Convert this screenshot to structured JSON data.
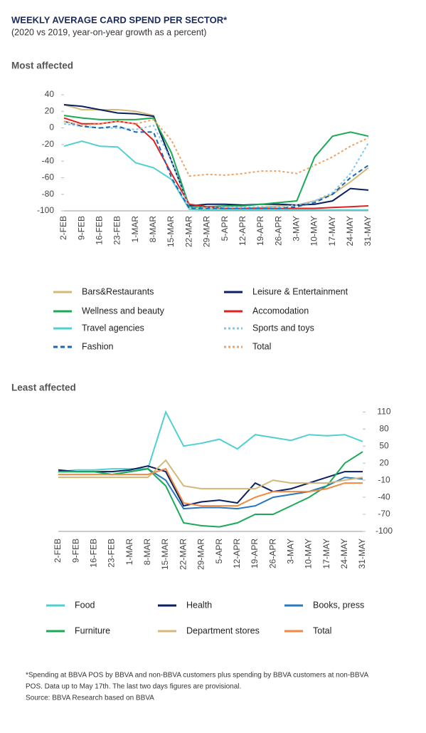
{
  "header": {
    "title": "WEEKLY AVERAGE CARD SPEND PER SECTOR*",
    "subtitle": "(2020 vs 2019, year-on-year growth as a percent)"
  },
  "chart_data": [
    {
      "type": "line",
      "title": "Most affected",
      "categories": [
        "2-FEB",
        "9-FEB",
        "16-FEB",
        "23-FEB",
        "1-MAR",
        "8-MAR",
        "15-MAR",
        "22-MAR",
        "29-MAR",
        "5-APR",
        "12-APR",
        "19-APR",
        "26-APR",
        "3-MAY",
        "10-MAY",
        "17-MAY",
        "24-MAY",
        "31-MAY"
      ],
      "ylim": [
        -100,
        40
      ],
      "yticks": [
        40,
        20,
        0,
        -20,
        -40,
        -60,
        -80,
        -100
      ],
      "y_axis_side": "left",
      "grid": false,
      "series": [
        {
          "name": "Bars&Restaurants",
          "color": "#d4b87a",
          "dash": "solid",
          "values": [
            28,
            22,
            22,
            22,
            20,
            15,
            -40,
            -96,
            -97,
            -97,
            -97,
            -96,
            -94,
            -93,
            -88,
            -80,
            -65,
            -48
          ]
        },
        {
          "name": "Leisure & Entertainment",
          "color": "#0a2060",
          "dash": "solid",
          "values": [
            28,
            26,
            22,
            18,
            17,
            14,
            -40,
            -94,
            -92,
            -92,
            -93,
            -92,
            -92,
            -93,
            -92,
            -88,
            -73,
            -75
          ]
        },
        {
          "name": "Wellness and beauty",
          "color": "#1aaa55",
          "dash": "solid",
          "values": [
            15,
            12,
            10,
            10,
            10,
            12,
            -30,
            -95,
            -95,
            -94,
            -94,
            -92,
            -90,
            -88,
            -35,
            -10,
            -5,
            -10
          ]
        },
        {
          "name": "Accomodation",
          "color": "#e0201e",
          "dash": "solid",
          "values": [
            12,
            5,
            5,
            8,
            5,
            -15,
            -55,
            -92,
            -95,
            -97,
            -97,
            -97,
            -97,
            -97,
            -97,
            -96,
            -95,
            -94
          ]
        },
        {
          "name": "Travel agencies",
          "color": "#4fd0d0",
          "dash": "solid",
          "values": [
            -22,
            -16,
            -22,
            -23,
            -42,
            -48,
            -62,
            -98,
            -99,
            -99,
            -99,
            -99,
            -99,
            -99,
            -99,
            -99,
            -99,
            -99
          ]
        },
        {
          "name": "Sports and toys",
          "color": "#7ec8f0",
          "dash": "dotted",
          "values": [
            5,
            2,
            0,
            0,
            -2,
            3,
            -40,
            -96,
            -96,
            -96,
            -96,
            -95,
            -95,
            -93,
            -88,
            -78,
            -55,
            -18
          ]
        },
        {
          "name": "Fashion",
          "color": "#1a64b4",
          "dash": "dashed",
          "values": [
            8,
            2,
            0,
            2,
            -5,
            -5,
            -60,
            -97,
            -97,
            -97,
            -97,
            -97,
            -97,
            -95,
            -90,
            -80,
            -60,
            -45
          ]
        },
        {
          "name": "Total",
          "color": "#f0a060",
          "dash": "dotted",
          "values": [
            8,
            3,
            5,
            8,
            5,
            10,
            -15,
            -58,
            -56,
            -57,
            -55,
            -52,
            -52,
            -55,
            -45,
            -35,
            -22,
            -12
          ]
        }
      ]
    },
    {
      "type": "line",
      "title": "Least affected",
      "categories": [
        "2-FEB",
        "9-FEB",
        "16-FEB",
        "23-FEB",
        "1-MAR",
        "8-MAR",
        "15-MAR",
        "22-MAR",
        "29-MAR",
        "5-APR",
        "12-APR",
        "19-APR",
        "26-APR",
        "3-MAY",
        "10-MAY",
        "17-MAY",
        "24-MAY",
        "31-MAY"
      ],
      "ylim": [
        -100,
        120
      ],
      "yticks": [
        110,
        80,
        50,
        20,
        -10,
        -40,
        -70,
        -100
      ],
      "y_axis_side": "right",
      "grid": false,
      "series": [
        {
          "name": "Food",
          "color": "#4fd0d0",
          "dash": "solid",
          "values": [
            5,
            8,
            8,
            10,
            10,
            10,
            110,
            50,
            55,
            62,
            45,
            70,
            65,
            60,
            70,
            68,
            70,
            58
          ]
        },
        {
          "name": "Health",
          "color": "#0a2060",
          "dash": "solid",
          "values": [
            8,
            5,
            5,
            5,
            8,
            15,
            5,
            -55,
            -48,
            -45,
            -50,
            -15,
            -30,
            -25,
            -15,
            -5,
            5,
            5
          ]
        },
        {
          "name": "Books, press",
          "color": "#2a78c0",
          "dash": "solid",
          "values": [
            5,
            5,
            5,
            0,
            5,
            10,
            -10,
            -60,
            -58,
            -58,
            -60,
            -55,
            -40,
            -35,
            -30,
            -20,
            -5,
            -8
          ]
        },
        {
          "name": "Furniture",
          "color": "#1aaa55",
          "dash": "solid",
          "values": [
            5,
            5,
            5,
            0,
            5,
            10,
            -20,
            -85,
            -90,
            -92,
            -85,
            -70,
            -70,
            -55,
            -40,
            -20,
            20,
            40
          ]
        },
        {
          "name": "Department stores",
          "color": "#d4b87a",
          "dash": "solid",
          "values": [
            -5,
            -5,
            -5,
            -5,
            -5,
            -5,
            25,
            -20,
            -25,
            -25,
            -25,
            -25,
            -10,
            -15,
            -15,
            -15,
            -10,
            -5
          ]
        },
        {
          "name": "Total",
          "color": "#f08a40",
          "dash": "solid",
          "values": [
            0,
            0,
            0,
            0,
            0,
            0,
            10,
            -50,
            -55,
            -55,
            -55,
            -40,
            -30,
            -30,
            -30,
            -25,
            -15,
            -15
          ]
        }
      ]
    }
  ],
  "footnote": [
    "*Spending at BBVA POS by BBVA and non-BBVA customers plus spending by BBVA customers at non-BBVA",
    "POS. Data up to May 17th. The last two days figures are provisional.",
    "Source: BBVA Research based on BBVA"
  ]
}
